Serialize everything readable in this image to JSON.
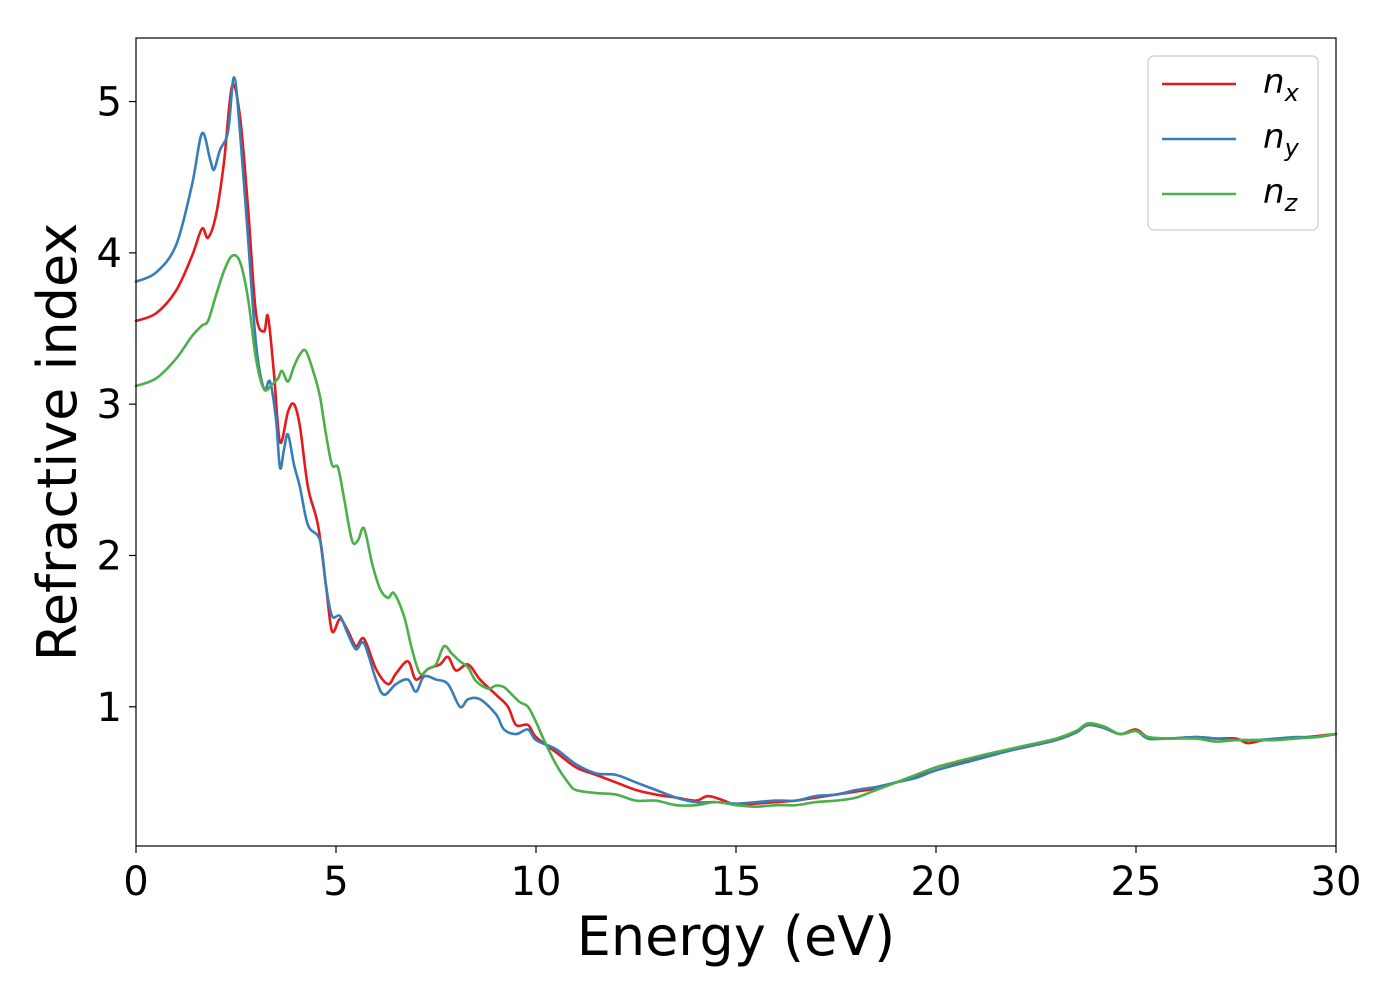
{
  "chart_data": {
    "type": "line",
    "xlabel": "Energy (eV)",
    "ylabel": "Refractive index",
    "xlim": [
      0,
      30
    ],
    "ylim": [
      0.08,
      5.42
    ],
    "xticks": [
      "0",
      "5",
      "10",
      "15",
      "20",
      "25",
      "30"
    ],
    "yticks": [
      "1",
      "2",
      "3",
      "4",
      "5"
    ],
    "grid": false,
    "legend_position": "top-right",
    "series": [
      {
        "name": "n_x",
        "legend_base": "n",
        "legend_sub": "x",
        "color": "#e41a1c",
        "points": [
          [
            0,
            3.55
          ],
          [
            0.5,
            3.6
          ],
          [
            1,
            3.75
          ],
          [
            1.4,
            3.98
          ],
          [
            1.65,
            4.16
          ],
          [
            1.8,
            4.1
          ],
          [
            2.0,
            4.25
          ],
          [
            2.2,
            4.6
          ],
          [
            2.4,
            5.1
          ],
          [
            2.6,
            4.9
          ],
          [
            2.8,
            4.3
          ],
          [
            3.0,
            3.6
          ],
          [
            3.2,
            3.48
          ],
          [
            3.3,
            3.58
          ],
          [
            3.45,
            3.2
          ],
          [
            3.6,
            2.75
          ],
          [
            3.8,
            2.95
          ],
          [
            3.95,
            3.0
          ],
          [
            4.1,
            2.85
          ],
          [
            4.3,
            2.45
          ],
          [
            4.55,
            2.2
          ],
          [
            4.75,
            1.8
          ],
          [
            4.9,
            1.5
          ],
          [
            5.1,
            1.58
          ],
          [
            5.3,
            1.5
          ],
          [
            5.5,
            1.4
          ],
          [
            5.7,
            1.45
          ],
          [
            6.0,
            1.25
          ],
          [
            6.3,
            1.15
          ],
          [
            6.5,
            1.22
          ],
          [
            6.8,
            1.3
          ],
          [
            7.0,
            1.18
          ],
          [
            7.3,
            1.25
          ],
          [
            7.6,
            1.28
          ],
          [
            7.8,
            1.33
          ],
          [
            8.0,
            1.24
          ],
          [
            8.3,
            1.28
          ],
          [
            8.6,
            1.18
          ],
          [
            9.0,
            1.08
          ],
          [
            9.3,
            1.0
          ],
          [
            9.5,
            0.88
          ],
          [
            9.8,
            0.88
          ],
          [
            10.0,
            0.8
          ],
          [
            10.5,
            0.7
          ],
          [
            11.0,
            0.6
          ],
          [
            11.5,
            0.55
          ],
          [
            12.0,
            0.5
          ],
          [
            12.5,
            0.45
          ],
          [
            13.0,
            0.42
          ],
          [
            13.5,
            0.4
          ],
          [
            14.0,
            0.38
          ],
          [
            14.3,
            0.41
          ],
          [
            14.7,
            0.38
          ],
          [
            15.0,
            0.35
          ],
          [
            15.5,
            0.36
          ],
          [
            16.0,
            0.37
          ],
          [
            16.5,
            0.38
          ],
          [
            17,
            0.4
          ],
          [
            17.5,
            0.42
          ],
          [
            18,
            0.44
          ],
          [
            18.5,
            0.46
          ],
          [
            19,
            0.5
          ],
          [
            19.5,
            0.54
          ],
          [
            20,
            0.6
          ],
          [
            21,
            0.66
          ],
          [
            22,
            0.72
          ],
          [
            23,
            0.78
          ],
          [
            23.5,
            0.83
          ],
          [
            23.8,
            0.88
          ],
          [
            24.2,
            0.86
          ],
          [
            24.6,
            0.82
          ],
          [
            25.0,
            0.85
          ],
          [
            25.3,
            0.8
          ],
          [
            25.8,
            0.79
          ],
          [
            26.5,
            0.8
          ],
          [
            27.0,
            0.79
          ],
          [
            27.5,
            0.79
          ],
          [
            27.8,
            0.76
          ],
          [
            28.2,
            0.78
          ],
          [
            28.8,
            0.79
          ],
          [
            29.3,
            0.8
          ],
          [
            30,
            0.82
          ]
        ]
      },
      {
        "name": "n_y",
        "legend_base": "n",
        "legend_sub": "y",
        "color": "#377eb8",
        "points": [
          [
            0,
            3.81
          ],
          [
            0.5,
            3.87
          ],
          [
            1,
            4.05
          ],
          [
            1.4,
            4.45
          ],
          [
            1.65,
            4.79
          ],
          [
            1.85,
            4.62
          ],
          [
            1.95,
            4.55
          ],
          [
            2.1,
            4.68
          ],
          [
            2.3,
            4.8
          ],
          [
            2.45,
            5.16
          ],
          [
            2.6,
            4.8
          ],
          [
            2.8,
            4.1
          ],
          [
            3.0,
            3.4
          ],
          [
            3.2,
            3.1
          ],
          [
            3.35,
            3.15
          ],
          [
            3.5,
            2.9
          ],
          [
            3.6,
            2.58
          ],
          [
            3.7,
            2.7
          ],
          [
            3.8,
            2.8
          ],
          [
            3.95,
            2.6
          ],
          [
            4.1,
            2.45
          ],
          [
            4.3,
            2.2
          ],
          [
            4.6,
            2.1
          ],
          [
            4.75,
            1.8
          ],
          [
            4.9,
            1.6
          ],
          [
            5.1,
            1.6
          ],
          [
            5.3,
            1.48
          ],
          [
            5.5,
            1.38
          ],
          [
            5.7,
            1.42
          ],
          [
            6.0,
            1.18
          ],
          [
            6.2,
            1.08
          ],
          [
            6.5,
            1.15
          ],
          [
            6.8,
            1.18
          ],
          [
            7.0,
            1.1
          ],
          [
            7.2,
            1.2
          ],
          [
            7.5,
            1.18
          ],
          [
            7.8,
            1.15
          ],
          [
            8.1,
            1.0
          ],
          [
            8.3,
            1.05
          ],
          [
            8.6,
            1.05
          ],
          [
            9.0,
            0.95
          ],
          [
            9.2,
            0.85
          ],
          [
            9.5,
            0.82
          ],
          [
            9.8,
            0.85
          ],
          [
            10.0,
            0.78
          ],
          [
            10.5,
            0.72
          ],
          [
            11.0,
            0.62
          ],
          [
            11.5,
            0.56
          ],
          [
            12.0,
            0.55
          ],
          [
            12.5,
            0.5
          ],
          [
            13.0,
            0.45
          ],
          [
            13.5,
            0.4
          ],
          [
            14.0,
            0.37
          ],
          [
            14.5,
            0.37
          ],
          [
            15.0,
            0.36
          ],
          [
            15.5,
            0.37
          ],
          [
            16.0,
            0.38
          ],
          [
            16.5,
            0.38
          ],
          [
            17,
            0.41
          ],
          [
            17.5,
            0.42
          ],
          [
            18,
            0.45
          ],
          [
            18.5,
            0.47
          ],
          [
            19,
            0.5
          ],
          [
            19.5,
            0.53
          ],
          [
            20,
            0.58
          ],
          [
            21,
            0.65
          ],
          [
            22,
            0.72
          ],
          [
            23,
            0.78
          ],
          [
            23.5,
            0.83
          ],
          [
            23.8,
            0.88
          ],
          [
            24.2,
            0.86
          ],
          [
            24.6,
            0.82
          ],
          [
            25.0,
            0.84
          ],
          [
            25.3,
            0.79
          ],
          [
            25.8,
            0.79
          ],
          [
            26.5,
            0.8
          ],
          [
            27.0,
            0.79
          ],
          [
            27.5,
            0.78
          ],
          [
            28.0,
            0.78
          ],
          [
            28.5,
            0.79
          ],
          [
            29.0,
            0.8
          ],
          [
            29.5,
            0.8
          ],
          [
            30,
            0.82
          ]
        ]
      },
      {
        "name": "n_z",
        "legend_base": "n",
        "legend_sub": "z",
        "color": "#4daf4a",
        "points": [
          [
            0,
            3.12
          ],
          [
            0.5,
            3.17
          ],
          [
            1,
            3.3
          ],
          [
            1.4,
            3.45
          ],
          [
            1.65,
            3.52
          ],
          [
            1.8,
            3.55
          ],
          [
            2.0,
            3.72
          ],
          [
            2.2,
            3.88
          ],
          [
            2.4,
            3.98
          ],
          [
            2.6,
            3.94
          ],
          [
            2.8,
            3.7
          ],
          [
            3.0,
            3.3
          ],
          [
            3.2,
            3.1
          ],
          [
            3.4,
            3.13
          ],
          [
            3.55,
            3.17
          ],
          [
            3.65,
            3.22
          ],
          [
            3.8,
            3.15
          ],
          [
            3.95,
            3.25
          ],
          [
            4.1,
            3.33
          ],
          [
            4.25,
            3.35
          ],
          [
            4.45,
            3.2
          ],
          [
            4.6,
            3.05
          ],
          [
            4.75,
            2.8
          ],
          [
            4.9,
            2.6
          ],
          [
            5.05,
            2.58
          ],
          [
            5.2,
            2.38
          ],
          [
            5.4,
            2.1
          ],
          [
            5.55,
            2.1
          ],
          [
            5.7,
            2.18
          ],
          [
            5.9,
            1.95
          ],
          [
            6.1,
            1.78
          ],
          [
            6.3,
            1.72
          ],
          [
            6.45,
            1.75
          ],
          [
            6.7,
            1.6
          ],
          [
            6.9,
            1.38
          ],
          [
            7.1,
            1.22
          ],
          [
            7.3,
            1.25
          ],
          [
            7.5,
            1.28
          ],
          [
            7.7,
            1.4
          ],
          [
            7.9,
            1.35
          ],
          [
            8.1,
            1.3
          ],
          [
            8.3,
            1.26
          ],
          [
            8.5,
            1.17
          ],
          [
            8.8,
            1.12
          ],
          [
            9.0,
            1.14
          ],
          [
            9.2,
            1.13
          ],
          [
            9.4,
            1.08
          ],
          [
            9.6,
            1.03
          ],
          [
            9.8,
            1.0
          ],
          [
            10.0,
            0.9
          ],
          [
            10.2,
            0.78
          ],
          [
            10.5,
            0.62
          ],
          [
            10.8,
            0.5
          ],
          [
            11.0,
            0.45
          ],
          [
            11.5,
            0.43
          ],
          [
            12.0,
            0.42
          ],
          [
            12.5,
            0.38
          ],
          [
            13.0,
            0.38
          ],
          [
            13.5,
            0.35
          ],
          [
            14.0,
            0.35
          ],
          [
            14.5,
            0.37
          ],
          [
            15.0,
            0.35
          ],
          [
            15.5,
            0.34
          ],
          [
            16.0,
            0.35
          ],
          [
            16.5,
            0.35
          ],
          [
            17,
            0.37
          ],
          [
            17.5,
            0.38
          ],
          [
            18,
            0.4
          ],
          [
            18.5,
            0.45
          ],
          [
            19,
            0.5
          ],
          [
            19.5,
            0.55
          ],
          [
            20,
            0.6
          ],
          [
            21,
            0.67
          ],
          [
            22,
            0.73
          ],
          [
            23,
            0.79
          ],
          [
            23.5,
            0.84
          ],
          [
            23.8,
            0.89
          ],
          [
            24.2,
            0.87
          ],
          [
            24.6,
            0.82
          ],
          [
            25.0,
            0.84
          ],
          [
            25.3,
            0.8
          ],
          [
            25.8,
            0.79
          ],
          [
            26.5,
            0.79
          ],
          [
            27.0,
            0.77
          ],
          [
            27.5,
            0.78
          ],
          [
            28.0,
            0.78
          ],
          [
            28.5,
            0.78
          ],
          [
            29.0,
            0.79
          ],
          [
            29.5,
            0.8
          ],
          [
            30,
            0.82
          ]
        ]
      }
    ]
  }
}
